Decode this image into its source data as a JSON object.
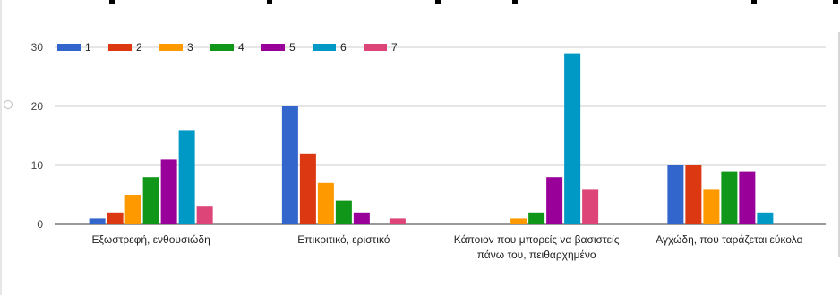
{
  "chart_data": {
    "type": "bar",
    "categories": [
      [
        "Εξωστρεφή, ενθουσιώδη"
      ],
      [
        "Επικριτικό, εριστικό"
      ],
      [
        "Κάποιον που μπορείς να βασιστείς",
        "πάνω του, πειθαρχημένο"
      ],
      [
        "Αγχώδη, που ταράζεται εύκολα"
      ]
    ],
    "series": [
      {
        "name": "1",
        "color": "#3366cc",
        "values": [
          1,
          20,
          0,
          10
        ]
      },
      {
        "name": "2",
        "color": "#dc3912",
        "values": [
          2,
          12,
          0,
          10
        ]
      },
      {
        "name": "3",
        "color": "#ff9900",
        "values": [
          5,
          7,
          1,
          6
        ]
      },
      {
        "name": "4",
        "color": "#109618",
        "values": [
          8,
          4,
          2,
          9
        ]
      },
      {
        "name": "5",
        "color": "#990099",
        "values": [
          11,
          2,
          8,
          9
        ]
      },
      {
        "name": "6",
        "color": "#0099c6",
        "values": [
          16,
          0,
          29,
          2
        ]
      },
      {
        "name": "7",
        "color": "#dd4477",
        "values": [
          3,
          1,
          6,
          0
        ]
      }
    ],
    "ylim": [
      0,
      30
    ],
    "yticks": [
      0,
      10,
      20,
      30
    ],
    "grid": true,
    "legend": "top-left"
  }
}
